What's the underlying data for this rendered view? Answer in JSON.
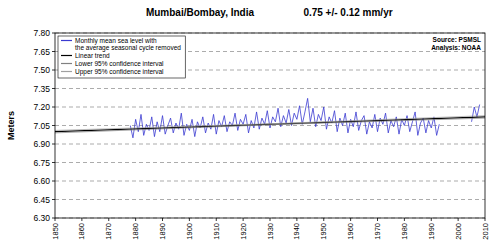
{
  "chart_data": {
    "type": "line",
    "title": "Mumbai/Bombay, India",
    "subtitle": "0.75 +/- 0.12 mm/yr",
    "y_label": "Meters",
    "annotations": [
      "Source: PSMSL",
      "Analysis: NOAA"
    ],
    "xlim": [
      1850,
      2010
    ],
    "xticks": [
      1850,
      1860,
      1870,
      1880,
      1890,
      1900,
      1910,
      1920,
      1930,
      1940,
      1950,
      1960,
      1970,
      1980,
      1990,
      2000,
      2010
    ],
    "ylim": [
      6.3,
      7.8
    ],
    "yticks": [
      {
        "value": 6.3,
        "label": "6.30"
      },
      {
        "value": 6.45,
        "label": "6.45"
      },
      {
        "value": 6.6,
        "label": "6.60"
      },
      {
        "value": 6.75,
        "label": "6.75"
      },
      {
        "value": 6.9,
        "label": "6.90"
      },
      {
        "value": 7.05,
        "label": "7.05"
      },
      {
        "value": 7.2,
        "label": "7.20"
      },
      {
        "value": 7.35,
        "label": "7.35"
      },
      {
        "value": 7.5,
        "label": "7.50"
      },
      {
        "value": 7.65,
        "label": "7.65"
      },
      {
        "value": 7.8,
        "label": "7.80"
      }
    ],
    "grid": true,
    "legend": "upper left",
    "series": [
      {
        "name": "Monthly mean sea level with the average seasonal cycle removed",
        "color": "#3a3ad0",
        "line_style": "solid",
        "x": [
          1878,
          1879,
          1880,
          1881,
          1882,
          1883,
          1884,
          1885,
          1886,
          1887,
          1888,
          1889,
          1890,
          1891,
          1892,
          1893,
          1894,
          1895,
          1896,
          1897,
          1898,
          1899,
          1900,
          1901,
          1902,
          1903,
          1904,
          1905,
          1906,
          1907,
          1908,
          1909,
          1910,
          1911,
          1912,
          1913,
          1914,
          1915,
          1916,
          1917,
          1918,
          1919,
          1920,
          1921,
          1922,
          1923,
          1924,
          1925,
          1926,
          1927,
          1928,
          1929,
          1930,
          1931,
          1932,
          1933,
          1934,
          1935,
          1936,
          1937,
          1938,
          1939,
          1940,
          1941,
          1942,
          1943,
          1944,
          1945,
          1946,
          1947,
          1948,
          1949,
          1950,
          1951,
          1952,
          1953,
          1954,
          1955,
          1956,
          1957,
          1958,
          1959,
          1960,
          1961,
          1962,
          1963,
          1964,
          1965,
          1966,
          1967,
          1968,
          1969,
          1970,
          1971,
          1972,
          1973,
          1974,
          1975,
          1976,
          1977,
          1978,
          1979,
          1980,
          1981,
          1982,
          1983,
          1984,
          1985,
          1986,
          1987,
          1988,
          1989,
          1990,
          1991,
          1992,
          1993,
          2000,
          2005,
          2006,
          2007,
          2008
        ],
        "values": [
          7.05,
          6.95,
          7.1,
          7.0,
          7.14,
          6.97,
          7.06,
          7.01,
          7.12,
          6.96,
          7.08,
          7.0,
          7.13,
          6.98,
          7.05,
          7.11,
          6.99,
          7.07,
          7.02,
          7.15,
          6.97,
          7.06,
          7.01,
          7.1,
          6.96,
          7.08,
          7.03,
          7.12,
          6.99,
          7.07,
          7.02,
          7.14,
          6.98,
          7.09,
          7.04,
          7.13,
          7.0,
          7.08,
          7.05,
          7.15,
          7.01,
          7.1,
          7.06,
          7.14,
          6.99,
          7.09,
          7.03,
          7.16,
          7.02,
          7.11,
          7.06,
          7.17,
          7.03,
          7.12,
          7.08,
          7.19,
          7.04,
          7.13,
          7.07,
          7.18,
          7.05,
          7.15,
          7.1,
          7.21,
          7.06,
          7.16,
          7.27,
          7.08,
          7.19,
          7.04,
          7.14,
          7.09,
          7.2,
          7.02,
          7.12,
          7.07,
          7.17,
          7.0,
          7.11,
          7.05,
          7.15,
          6.99,
          7.1,
          7.04,
          7.16,
          7.01,
          7.09,
          7.13,
          6.98,
          7.08,
          7.03,
          7.14,
          7.0,
          7.11,
          7.06,
          7.15,
          6.99,
          7.09,
          7.04,
          7.12,
          6.98,
          7.1,
          7.05,
          7.13,
          7.0,
          7.08,
          7.16,
          6.97,
          7.07,
          7.11,
          6.99,
          7.09,
          7.03,
          7.12,
          6.97,
          7.06,
          null,
          7.08,
          7.2,
          7.12,
          7.22
        ]
      },
      {
        "name": "Linear trend",
        "color": "#000000",
        "line_style": "solid",
        "x": [
          1850,
          2010
        ],
        "values": [
          7.0,
          7.12
        ]
      },
      {
        "name": "Lower 95% confidence interval",
        "color": "#808080",
        "line_style": "solid",
        "x": [
          1850,
          1935,
          2010
        ],
        "values": [
          6.99,
          7.06,
          7.11
        ]
      },
      {
        "name": "Upper 95% confidence interval",
        "color": "#a0a0a0",
        "line_style": "solid",
        "x": [
          1850,
          1935,
          2010
        ],
        "values": [
          7.01,
          7.068,
          7.13
        ]
      }
    ]
  }
}
